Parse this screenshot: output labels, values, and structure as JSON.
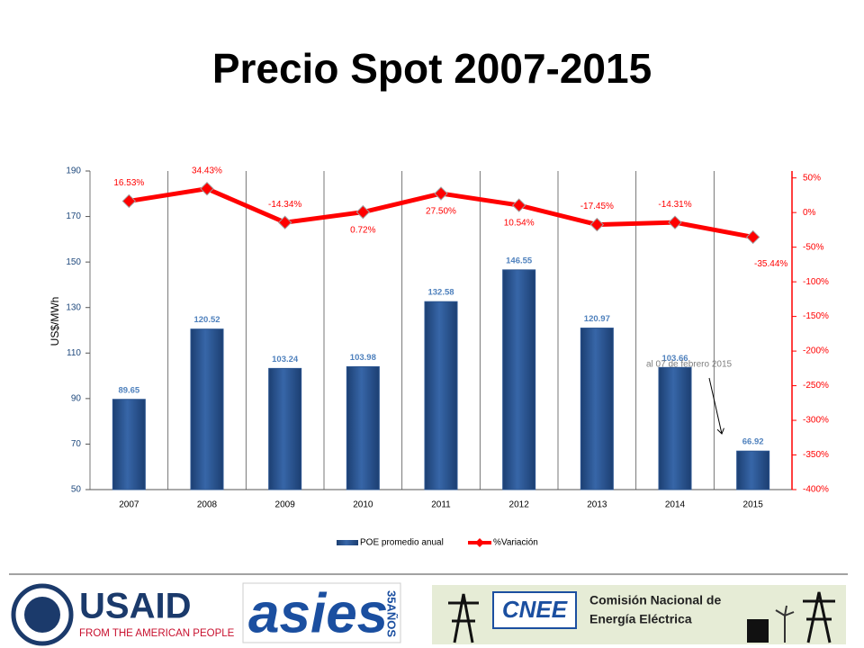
{
  "chart_data": {
    "type": "bar-line",
    "title": "Precio Spot 2007-2015",
    "y_label": "US$/MWh",
    "categories": [
      "2007",
      "2008",
      "2009",
      "2010",
      "2011",
      "2012",
      "2013",
      "2014",
      "2015"
    ],
    "series": [
      {
        "name": "POE promedio anual",
        "type": "bar",
        "color": "#2a5490",
        "values": [
          89.65,
          120.52,
          103.24,
          103.98,
          132.58,
          146.55,
          120.97,
          103.66,
          66.92
        ]
      },
      {
        "name": "%Variación",
        "type": "line",
        "axis": "y2",
        "color": "#ff0000",
        "values": [
          16.53,
          34.43,
          -14.34,
          0.72,
          27.5,
          10.54,
          -17.45,
          -14.31,
          -35.44
        ],
        "value_labels": [
          "16.53%",
          "34.43%",
          "-14.34%",
          "0.72%",
          "27.50%",
          "10.54%",
          "-17.45%",
          "-14.31%",
          "-35.44%"
        ]
      }
    ],
    "ylim": [
      50,
      190
    ],
    "yticks": [
      50,
      70,
      90,
      110,
      130,
      150,
      170,
      190
    ],
    "y2lim": [
      -400,
      60
    ],
    "y2ticks": [
      {
        "value": 50,
        "label": "50%"
      },
      {
        "value": 0,
        "label": "0%"
      },
      {
        "value": -50,
        "label": "-50%"
      },
      {
        "value": -100,
        "label": "-100%"
      },
      {
        "value": -150,
        "label": "-150%"
      },
      {
        "value": -200,
        "label": "-200%"
      },
      {
        "value": -250,
        "label": "-250%"
      },
      {
        "value": -300,
        "label": "-300%"
      },
      {
        "value": -350,
        "label": "-350%"
      },
      {
        "value": -400,
        "label": "-400%"
      }
    ],
    "annotation": "al 07 de febrero 2015"
  },
  "logos": {
    "usaid": "USAID",
    "usaid_tagline": "FROM THE AMERICAN PEOPLE",
    "asies": "asies",
    "asies_years": "35AÑOS",
    "cnee": "CNEE",
    "cnee_line1": "Comisión Nacional de",
    "cnee_line2": "Energía Eléctrica"
  }
}
